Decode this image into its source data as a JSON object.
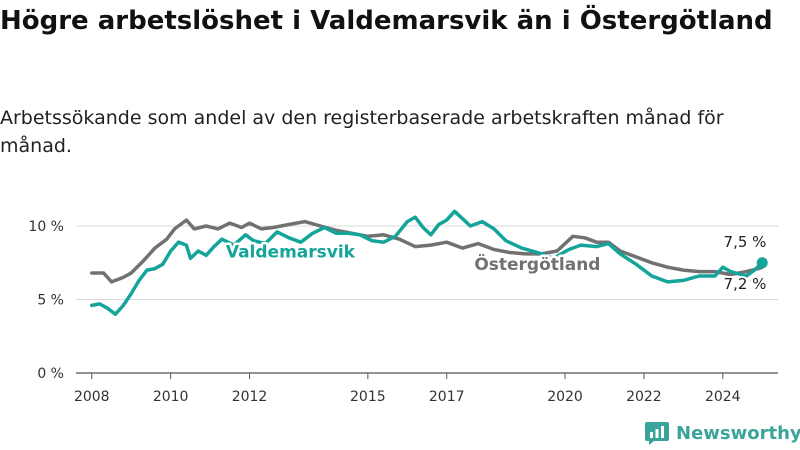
{
  "title": "Högre arbetslöshet i Valdemarsvik än i Östergötland",
  "subtitle": "Arbetssökande som andel av den registerbaserade arbetskraften månad för månad.",
  "brand": {
    "name": "Newsworthy",
    "color": "#3aa39a"
  },
  "chart_data": {
    "type": "line",
    "xlim": [
      2007.6,
      2025.4
    ],
    "ylim": [
      0,
      10
    ],
    "yticks": [
      {
        "value": 0,
        "label": "0 %"
      },
      {
        "value": 5,
        "label": "5 %"
      },
      {
        "value": 10,
        "label": "10 %"
      }
    ],
    "xticks": [
      {
        "value": 2008,
        "label": "2008"
      },
      {
        "value": 2010,
        "label": "2010"
      },
      {
        "value": 2012,
        "label": "2012"
      },
      {
        "value": 2015,
        "label": "2015"
      },
      {
        "value": 2017,
        "label": "2017"
      },
      {
        "value": 2020,
        "label": "2020"
      },
      {
        "value": 2022,
        "label": "2022"
      },
      {
        "value": 2024,
        "label": "2024"
      }
    ],
    "grid": true,
    "series": [
      {
        "name": "Östergötland",
        "color": "#717171",
        "end_label": "7,2 %",
        "points": [
          [
            2008.0,
            6.8
          ],
          [
            2008.3,
            6.8
          ],
          [
            2008.5,
            6.2
          ],
          [
            2008.8,
            6.5
          ],
          [
            2009.0,
            6.8
          ],
          [
            2009.3,
            7.6
          ],
          [
            2009.6,
            8.5
          ],
          [
            2009.9,
            9.1
          ],
          [
            2010.1,
            9.8
          ],
          [
            2010.4,
            10.4
          ],
          [
            2010.6,
            9.8
          ],
          [
            2010.9,
            10.0
          ],
          [
            2011.2,
            9.8
          ],
          [
            2011.5,
            10.2
          ],
          [
            2011.8,
            9.9
          ],
          [
            2012.0,
            10.2
          ],
          [
            2012.3,
            9.8
          ],
          [
            2012.6,
            9.9
          ],
          [
            2013.0,
            10.1
          ],
          [
            2013.4,
            10.3
          ],
          [
            2013.8,
            10.0
          ],
          [
            2014.2,
            9.7
          ],
          [
            2014.6,
            9.5
          ],
          [
            2015.0,
            9.3
          ],
          [
            2015.4,
            9.4
          ],
          [
            2015.8,
            9.1
          ],
          [
            2016.2,
            8.6
          ],
          [
            2016.6,
            8.7
          ],
          [
            2017.0,
            8.9
          ],
          [
            2017.4,
            8.5
          ],
          [
            2017.8,
            8.8
          ],
          [
            2018.2,
            8.4
          ],
          [
            2018.6,
            8.2
          ],
          [
            2019.0,
            8.1
          ],
          [
            2019.4,
            8.1
          ],
          [
            2019.8,
            8.3
          ],
          [
            2020.2,
            9.3
          ],
          [
            2020.5,
            9.2
          ],
          [
            2020.8,
            8.9
          ],
          [
            2021.1,
            8.9
          ],
          [
            2021.4,
            8.3
          ],
          [
            2021.8,
            7.9
          ],
          [
            2022.2,
            7.5
          ],
          [
            2022.6,
            7.2
          ],
          [
            2023.0,
            7.0
          ],
          [
            2023.4,
            6.9
          ],
          [
            2023.8,
            6.9
          ],
          [
            2024.2,
            6.7
          ],
          [
            2024.6,
            6.9
          ],
          [
            2024.9,
            7.1
          ],
          [
            2025.0,
            7.2
          ]
        ]
      },
      {
        "name": "Valdemarsvik",
        "color": "#13a49a",
        "end_label": "7,5 %",
        "points": [
          [
            2008.0,
            4.6
          ],
          [
            2008.2,
            4.7
          ],
          [
            2008.4,
            4.4
          ],
          [
            2008.6,
            4.0
          ],
          [
            2008.8,
            4.6
          ],
          [
            2009.0,
            5.4
          ],
          [
            2009.2,
            6.3
          ],
          [
            2009.4,
            7.0
          ],
          [
            2009.6,
            7.1
          ],
          [
            2009.8,
            7.4
          ],
          [
            2010.0,
            8.3
          ],
          [
            2010.2,
            8.9
          ],
          [
            2010.4,
            8.7
          ],
          [
            2010.5,
            7.8
          ],
          [
            2010.7,
            8.3
          ],
          [
            2010.9,
            8.0
          ],
          [
            2011.1,
            8.6
          ],
          [
            2011.3,
            9.1
          ],
          [
            2011.6,
            8.7
          ],
          [
            2011.9,
            9.4
          ],
          [
            2012.1,
            9.0
          ],
          [
            2012.4,
            8.8
          ],
          [
            2012.7,
            9.6
          ],
          [
            2013.0,
            9.2
          ],
          [
            2013.3,
            8.9
          ],
          [
            2013.6,
            9.5
          ],
          [
            2013.9,
            9.9
          ],
          [
            2014.2,
            9.5
          ],
          [
            2014.5,
            9.5
          ],
          [
            2014.8,
            9.4
          ],
          [
            2015.1,
            9.0
          ],
          [
            2015.4,
            8.9
          ],
          [
            2015.7,
            9.3
          ],
          [
            2016.0,
            10.3
          ],
          [
            2016.2,
            10.6
          ],
          [
            2016.4,
            9.9
          ],
          [
            2016.6,
            9.4
          ],
          [
            2016.8,
            10.1
          ],
          [
            2017.0,
            10.4
          ],
          [
            2017.2,
            11.0
          ],
          [
            2017.4,
            10.5
          ],
          [
            2017.6,
            10.0
          ],
          [
            2017.9,
            10.3
          ],
          [
            2018.2,
            9.8
          ],
          [
            2018.5,
            9.0
          ],
          [
            2018.9,
            8.5
          ],
          [
            2019.3,
            8.2
          ],
          [
            2019.7,
            7.8
          ],
          [
            2020.1,
            8.4
          ],
          [
            2020.4,
            8.7
          ],
          [
            2020.8,
            8.6
          ],
          [
            2021.1,
            8.8
          ],
          [
            2021.4,
            8.1
          ],
          [
            2021.8,
            7.4
          ],
          [
            2022.2,
            6.6
          ],
          [
            2022.6,
            6.2
          ],
          [
            2023.0,
            6.3
          ],
          [
            2023.4,
            6.6
          ],
          [
            2023.8,
            6.6
          ],
          [
            2024.0,
            7.2
          ],
          [
            2024.2,
            6.9
          ],
          [
            2024.6,
            6.6
          ],
          [
            2024.8,
            7.0
          ],
          [
            2025.0,
            7.5
          ]
        ]
      }
    ]
  }
}
